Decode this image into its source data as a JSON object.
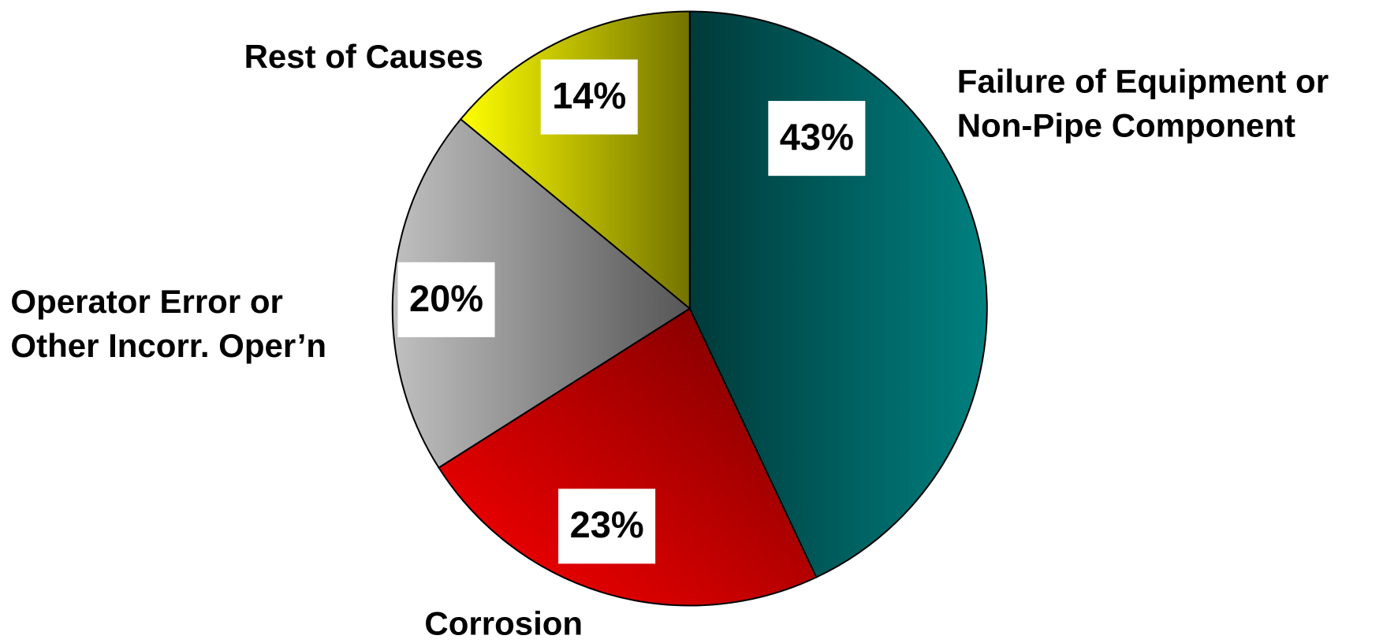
{
  "chart_data": {
    "type": "pie",
    "categories": [
      [
        "Failure of Equipment or",
        "Non-Pipe Component"
      ],
      [
        "Corrosion"
      ],
      [
        "Operator Error or",
        "Other Incorr. Oper’n"
      ],
      [
        "Rest of Causes"
      ]
    ],
    "values": [
      43,
      23,
      20,
      14
    ],
    "value_labels": [
      "43%",
      "23%",
      "20%",
      "14%"
    ],
    "colors": [
      "#008080",
      "#ff0000",
      "#c0c0c0",
      "#ffff00"
    ]
  }
}
